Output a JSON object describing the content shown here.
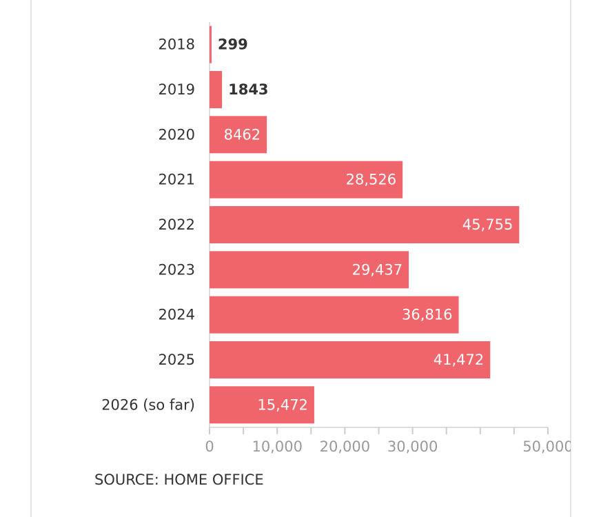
{
  "chart_data": {
    "type": "bar",
    "orientation": "horizontal",
    "categories": [
      "2018",
      "2019",
      "2020",
      "2021",
      "2022",
      "2023",
      "2024",
      "2025",
      "2026 (so far)"
    ],
    "values": [
      299,
      1843,
      8462,
      28526,
      45755,
      29437,
      36816,
      41472,
      15472
    ],
    "value_labels": [
      "299",
      "1843",
      "8462",
      "28,526",
      "45,755",
      "29,437",
      "36,816",
      "41,472",
      "15,472"
    ],
    "color": "#f0656b",
    "xlim": [
      0,
      50000
    ],
    "xticks": [
      0,
      {
        "value": 10000,
        "label": "10,000"
      },
      {
        "value": 20000,
        "label": "20,000"
      },
      {
        "value": 30000,
        "label": "30,000"
      },
      {
        "value": 50000,
        "label": "50,000"
      }
    ],
    "xtick_marks": [
      0,
      5000,
      10000,
      15000,
      20000,
      25000,
      30000,
      35000,
      40000,
      45000,
      50000
    ],
    "source": "SOURCE: HOME OFFICE"
  }
}
